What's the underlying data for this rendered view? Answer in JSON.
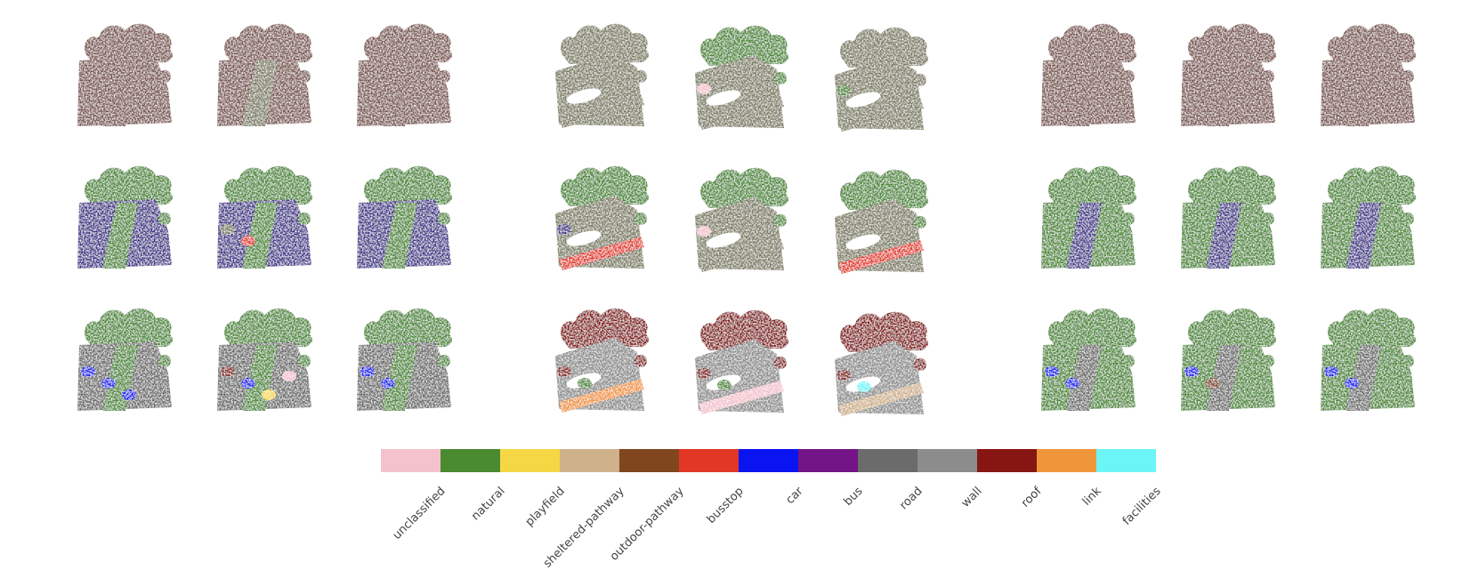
{
  "palette": {
    "unclassified": "#f3c2cc",
    "natural": "#4a8a30",
    "playfield": "#f5d745",
    "sheltered-pathway": "#cfb18c",
    "outdoor-pathway": "#80461e",
    "busstop": "#e33726",
    "car": "#0a14f0",
    "bus": "#731487",
    "road": "#6b6b6b",
    "wall": "#8c8c8c",
    "roof": "#871612",
    "link": "#f0963a",
    "facilities": "#6cf5f7",
    "unlabeled": "#7c5650",
    "predicted-surface": "#7d7d64",
    "mapped-ground": "#41338c"
  },
  "legend": {
    "classes": [
      {
        "name": "unclassified",
        "color": "#f3c2cc"
      },
      {
        "name": "natural",
        "color": "#4a8a30"
      },
      {
        "name": "playfield",
        "color": "#f5d745"
      },
      {
        "name": "sheltered-pathway",
        "color": "#cfb18c"
      },
      {
        "name": "outdoor-pathway",
        "color": "#80461e"
      },
      {
        "name": "busstop",
        "color": "#e33726"
      },
      {
        "name": "car",
        "color": "#0a14f0"
      },
      {
        "name": "bus",
        "color": "#731487"
      },
      {
        "name": "road",
        "color": "#6b6b6b"
      },
      {
        "name": "wall",
        "color": "#8c8c8c"
      },
      {
        "name": "roof",
        "color": "#871612"
      },
      {
        "name": "link",
        "color": "#f0963a"
      },
      {
        "name": "facilities",
        "color": "#6cf5f7"
      }
    ]
  },
  "groups": [
    {
      "name": "scene-a",
      "rows": [
        {
          "name": "row-1",
          "panels": [
            {
              "base": "unlabeled",
              "top": "unlabeled",
              "strip": "unlabeled",
              "extras": []
            },
            {
              "base": "unlabeled",
              "top": "unlabeled",
              "strip": "predicted-surface",
              "extras": []
            },
            {
              "base": "unlabeled",
              "top": "unlabeled",
              "strip": "unlabeled",
              "extras": []
            }
          ]
        },
        {
          "name": "row-2",
          "panels": [
            {
              "base": "mapped-ground",
              "top": "natural",
              "strip": "natural",
              "extras": []
            },
            {
              "base": "mapped-ground",
              "top": "natural",
              "strip": "natural",
              "extras": [
                "predicted-surface",
                "busstop"
              ]
            },
            {
              "base": "mapped-ground",
              "top": "natural",
              "strip": "natural",
              "extras": []
            }
          ]
        },
        {
          "name": "row-3",
          "panels": [
            {
              "base": "road",
              "top": "natural",
              "strip": "natural",
              "extras": [
                "car",
                "car",
                "car"
              ]
            },
            {
              "base": "road",
              "top": "natural",
              "strip": "natural",
              "extras": [
                "roof",
                "car",
                "playfield",
                "unclassified"
              ]
            },
            {
              "base": "road",
              "top": "natural",
              "strip": "natural",
              "extras": [
                "car",
                "car"
              ]
            }
          ]
        }
      ]
    },
    {
      "name": "scene-b",
      "rows": [
        {
          "name": "row-1",
          "panels": [
            {
              "base": "predicted-surface",
              "top": "predicted-surface",
              "strip": "predicted-surface",
              "extras": []
            },
            {
              "base": "predicted-surface",
              "top": "natural",
              "strip": "predicted-surface",
              "extras": [
                "unclassified"
              ]
            },
            {
              "base": "predicted-surface",
              "top": "predicted-surface",
              "strip": "predicted-surface",
              "extras": [
                "natural"
              ]
            }
          ]
        },
        {
          "name": "row-2",
          "panels": [
            {
              "base": "predicted-surface",
              "top": "natural",
              "strip": "busstop",
              "extras": [
                "mapped-ground"
              ]
            },
            {
              "base": "predicted-surface",
              "top": "natural",
              "strip": "predicted-surface",
              "extras": [
                "unclassified"
              ]
            },
            {
              "base": "predicted-surface",
              "top": "natural",
              "strip": "busstop",
              "extras": []
            }
          ]
        },
        {
          "name": "row-3",
          "panels": [
            {
              "base": "wall",
              "top": "roof",
              "strip": "link",
              "extras": [
                "roof",
                "natural"
              ]
            },
            {
              "base": "wall",
              "top": "roof",
              "strip": "unclassified",
              "extras": [
                "roof",
                "natural"
              ]
            },
            {
              "base": "wall",
              "top": "roof",
              "strip": "sheltered-pathway",
              "extras": [
                "roof",
                "facilities"
              ]
            }
          ]
        }
      ]
    },
    {
      "name": "scene-c",
      "rows": [
        {
          "name": "row-1",
          "panels": [
            {
              "base": "unlabeled",
              "top": "unlabeled",
              "strip": "unlabeled",
              "extras": []
            },
            {
              "base": "unlabeled",
              "top": "unlabeled",
              "strip": "unlabeled",
              "extras": []
            },
            {
              "base": "unlabeled",
              "top": "unlabeled",
              "strip": "unlabeled",
              "extras": []
            }
          ]
        },
        {
          "name": "row-2",
          "panels": [
            {
              "base": "natural",
              "top": "natural",
              "strip": "mapped-ground",
              "extras": []
            },
            {
              "base": "natural",
              "top": "natural",
              "strip": "mapped-ground",
              "extras": []
            },
            {
              "base": "natural",
              "top": "natural",
              "strip": "mapped-ground",
              "extras": []
            }
          ]
        },
        {
          "name": "row-3",
          "panels": [
            {
              "base": "natural",
              "top": "natural",
              "strip": "road",
              "extras": [
                "car",
                "car"
              ]
            },
            {
              "base": "natural",
              "top": "natural",
              "strip": "road",
              "extras": [
                "car",
                "outdoor-pathway"
              ]
            },
            {
              "base": "natural",
              "top": "natural",
              "strip": "road",
              "extras": [
                "car",
                "car"
              ]
            }
          ]
        }
      ]
    }
  ]
}
